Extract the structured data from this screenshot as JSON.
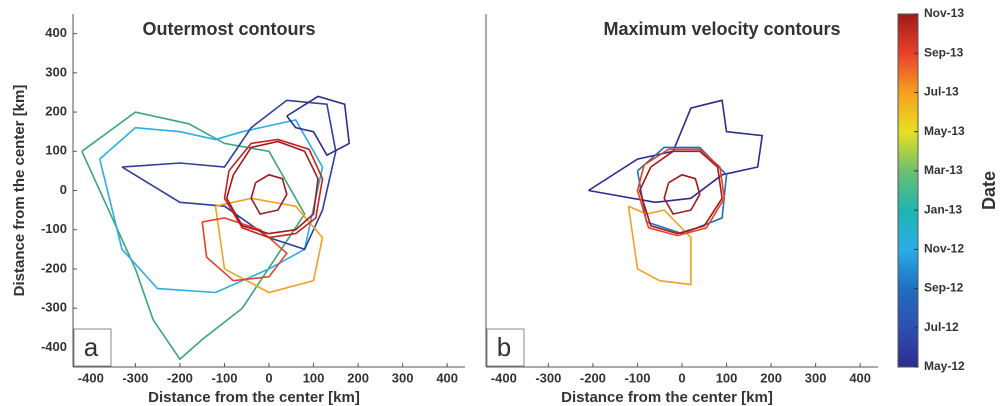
{
  "chart_data": [
    {
      "type": "contour",
      "title": "Outermost contours",
      "panel_label": "a",
      "x_label": "Distance from the center [km]",
      "y_label": "Distance from the center [km]",
      "xlim": [
        -440,
        440
      ],
      "ylim": [
        -450,
        450
      ],
      "xticks": [
        -400,
        -300,
        -200,
        -100,
        0,
        100,
        200,
        300,
        400
      ],
      "yticks": [
        -400,
        -300,
        -200,
        -100,
        0,
        100,
        200,
        300,
        400
      ],
      "series": [
        {
          "color": "#3aa57a",
          "x": [
            -420,
            -300,
            -180,
            -100,
            0,
            80,
            -60,
            -150,
            -200,
            -260,
            -300,
            -420
          ],
          "y": [
            100,
            200,
            170,
            120,
            100,
            -60,
            -300,
            -380,
            -430,
            -330,
            -200,
            100
          ]
        },
        {
          "color": "#2aaee6",
          "x": [
            -380,
            -300,
            -200,
            -120,
            -60,
            60,
            120,
            80,
            0,
            -120,
            -250,
            -330,
            -380
          ],
          "y": [
            80,
            160,
            150,
            130,
            150,
            180,
            60,
            -150,
            -200,
            -260,
            -250,
            -150,
            80
          ]
        },
        {
          "color": "#2f3f9f",
          "x": [
            -330,
            -200,
            -100,
            -40,
            40,
            130,
            150,
            120,
            80,
            0,
            -100,
            -200,
            -330
          ],
          "y": [
            60,
            70,
            60,
            160,
            230,
            220,
            100,
            -50,
            -150,
            -120,
            -40,
            -30,
            60
          ]
        },
        {
          "color": "#2b2d8f",
          "x": [
            40,
            110,
            170,
            180,
            130,
            100,
            60,
            40
          ],
          "y": [
            190,
            240,
            220,
            120,
            90,
            150,
            160,
            190
          ]
        },
        {
          "color": "#f5a020",
          "x": [
            -120,
            -40,
            60,
            120,
            100,
            0,
            -100,
            -120
          ],
          "y": [
            -40,
            -20,
            -40,
            -120,
            -230,
            -260,
            -200,
            -40
          ]
        },
        {
          "color": "#e8402a",
          "x": [
            -150,
            -100,
            -20,
            40,
            0,
            -80,
            -140,
            -150
          ],
          "y": [
            -80,
            -70,
            -100,
            -160,
            -220,
            -230,
            -170,
            -80
          ]
        },
        {
          "color": "#c8221e",
          "x": [
            -90,
            -40,
            20,
            90,
            120,
            105,
            60,
            0,
            -60,
            -100,
            -90
          ],
          "y": [
            50,
            120,
            130,
            105,
            30,
            -70,
            -110,
            -120,
            -95,
            -20,
            50
          ]
        },
        {
          "color": "#a01a1a",
          "x": [
            -80,
            -40,
            20,
            80,
            110,
            100,
            60,
            0,
            -60,
            -95,
            -80
          ],
          "y": [
            40,
            110,
            125,
            100,
            30,
            -60,
            -100,
            -110,
            -90,
            -20,
            40
          ]
        },
        {
          "color": "#a01a1a",
          "x": [
            -30,
            0,
            30,
            40,
            20,
            -20,
            -40,
            -30
          ],
          "y": [
            20,
            40,
            30,
            -10,
            -50,
            -60,
            -20,
            20
          ]
        }
      ]
    },
    {
      "type": "contour",
      "title": "Maximum velocity contours",
      "panel_label": "b",
      "x_label": "Distance from the center [km]",
      "xlim": [
        -440,
        440
      ],
      "ylim": [
        -450,
        450
      ],
      "xticks": [
        -400,
        -300,
        -200,
        -100,
        0,
        100,
        200,
        300,
        400
      ],
      "series": [
        {
          "color": "#2b2d8f",
          "x": [
            -210,
            -100,
            -20,
            20,
            90,
            100,
            180,
            170,
            90,
            20,
            -60,
            -210
          ],
          "y": [
            0,
            80,
            100,
            210,
            230,
            150,
            140,
            60,
            40,
            -20,
            -30,
            0
          ]
        },
        {
          "color": "#1f6fc0",
          "x": [
            -100,
            -40,
            40,
            100,
            90,
            0,
            -80,
            -100
          ],
          "y": [
            50,
            110,
            110,
            40,
            -70,
            -110,
            -80,
            50
          ]
        },
        {
          "color": "#f5a020",
          "x": [
            -120,
            -80,
            -40,
            20,
            20,
            -50,
            -100,
            -120
          ],
          "y": [
            -40,
            -60,
            -50,
            -120,
            -240,
            -230,
            -200,
            -40
          ]
        },
        {
          "color": "#e8402a",
          "x": [
            -85,
            -30,
            40,
            85,
            95,
            55,
            -10,
            -75,
            -100,
            -85
          ],
          "y": [
            65,
            105,
            105,
            60,
            -20,
            -95,
            -115,
            -95,
            0,
            65
          ]
        },
        {
          "color": "#a01a1a",
          "x": [
            -70,
            -20,
            40,
            80,
            90,
            50,
            -10,
            -70,
            -95,
            -70
          ],
          "y": [
            60,
            100,
            100,
            60,
            -20,
            -90,
            -110,
            -90,
            0,
            60
          ]
        },
        {
          "color": "#a01a1a",
          "x": [
            -30,
            0,
            30,
            40,
            20,
            -20,
            -40,
            -30
          ],
          "y": [
            20,
            40,
            30,
            -10,
            -50,
            -60,
            -20,
            20
          ]
        }
      ]
    },
    {
      "type": "colorbar",
      "label": "Date",
      "categories": [
        "May-12",
        "Jul-12",
        "Sep-12",
        "Nov-12",
        "Jan-13",
        "Mar-13",
        "May-13",
        "Jul-13",
        "Sep-13",
        "Nov-13"
      ],
      "colors": [
        "#2b2d8f",
        "#2f4fb0",
        "#1f6fc0",
        "#2aaee6",
        "#1fb5b0",
        "#6cc070",
        "#e8e020",
        "#f5a020",
        "#e8402a",
        "#a01a1a"
      ]
    }
  ]
}
